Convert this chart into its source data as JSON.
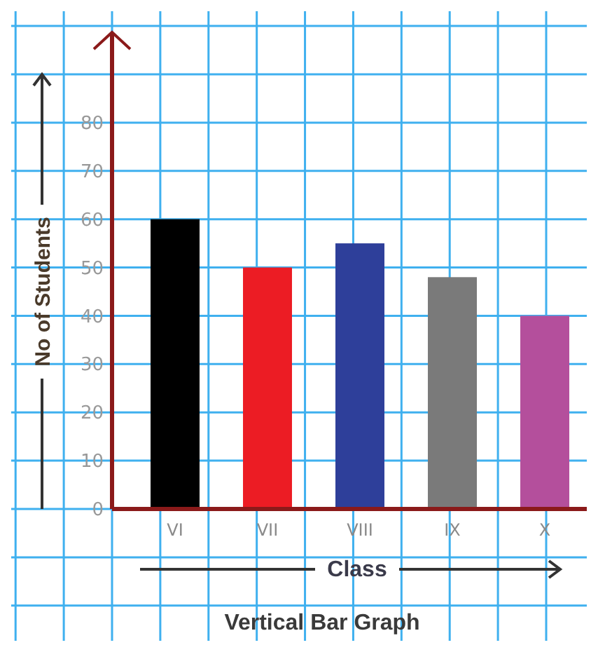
{
  "chart_data": {
    "type": "bar",
    "title": "Vertical Bar Graph",
    "xlabel": "Class",
    "ylabel": "No of Students",
    "categories": [
      "VI",
      "VII",
      "VIII",
      "IX",
      "X"
    ],
    "values": [
      60,
      50,
      55,
      48,
      40
    ],
    "colors": [
      "#000000",
      "#ec1c24",
      "#2e3f9a",
      "#7a7a7a",
      "#b44f9c"
    ],
    "ylim": [
      0,
      90
    ],
    "yticks": [
      0,
      10,
      20,
      30,
      40,
      50,
      60,
      70,
      80
    ],
    "grid": true
  }
}
